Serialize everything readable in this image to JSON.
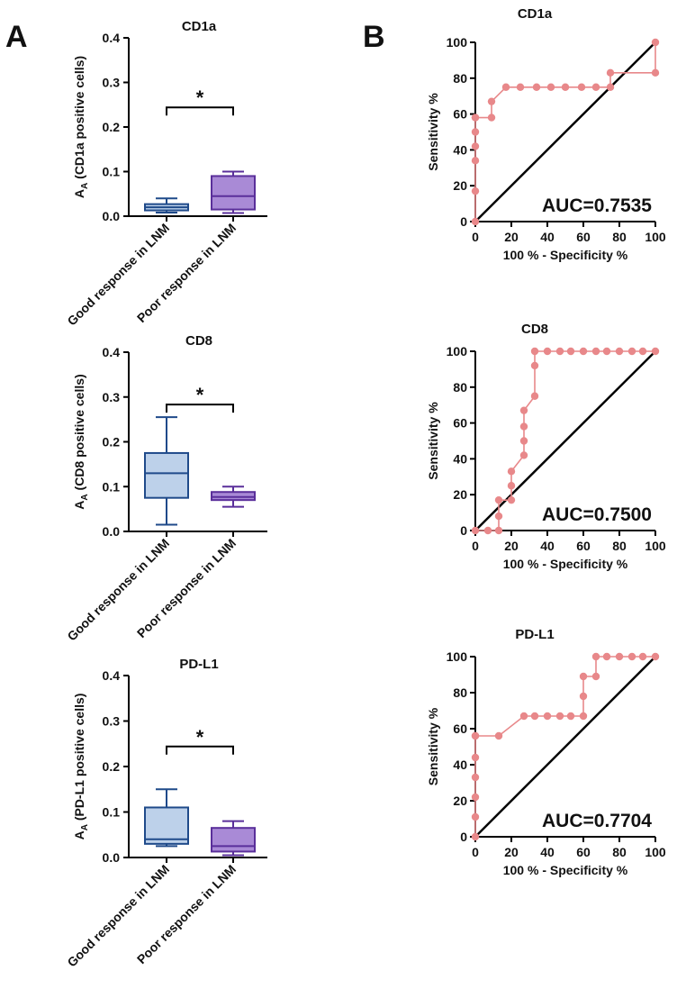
{
  "panels": {
    "a": "A",
    "b": "B"
  },
  "chart_data": [
    {
      "type": "box",
      "title": "CD1a",
      "ylabel": "A",
      "ylabel_sub": "A",
      "ylabel_rest": " (CD1a positive cells)",
      "ylim": [
        0,
        0.4
      ],
      "yticks": [
        "0.0",
        "0.1",
        "0.2",
        "0.3",
        "0.4"
      ],
      "significance": "*",
      "categories": [
        "Good response in LNM",
        "Poor response in LNM"
      ],
      "boxes": [
        {
          "min": 0.008,
          "q1": 0.013,
          "median": 0.02,
          "q3": 0.027,
          "max": 0.04,
          "fill": "#bdd1ea",
          "stroke": "#1f4a8a"
        },
        {
          "min": 0.007,
          "q1": 0.015,
          "median": 0.045,
          "q3": 0.09,
          "max": 0.1,
          "fill": "#a98ad6",
          "stroke": "#5a2f9a"
        }
      ]
    },
    {
      "type": "box",
      "title": "CD8",
      "ylabel": "A",
      "ylabel_sub": "A",
      "ylabel_rest": " (CD8 positive cells)",
      "ylim": [
        0,
        0.4
      ],
      "yticks": [
        "0.0",
        "0.1",
        "0.2",
        "0.3",
        "0.4"
      ],
      "significance": "*",
      "categories": [
        "Good response in LNM",
        "Poor response in LNM"
      ],
      "boxes": [
        {
          "min": 0.015,
          "q1": 0.075,
          "median": 0.13,
          "q3": 0.175,
          "max": 0.255,
          "fill": "#bdd1ea",
          "stroke": "#1f4a8a"
        },
        {
          "min": 0.055,
          "q1": 0.07,
          "median": 0.077,
          "q3": 0.088,
          "max": 0.1,
          "fill": "#a98ad6",
          "stroke": "#5a2f9a"
        }
      ]
    },
    {
      "type": "box",
      "title": "PD-L1",
      "ylabel": "A",
      "ylabel_sub": "A",
      "ylabel_rest": " (PD-L1 positive cells)",
      "ylim": [
        0,
        0.4
      ],
      "yticks": [
        "0.0",
        "0.1",
        "0.2",
        "0.3",
        "0.4"
      ],
      "significance": "*",
      "categories": [
        "Good response in LNM",
        "Poor response in LNM"
      ],
      "boxes": [
        {
          "min": 0.025,
          "q1": 0.03,
          "median": 0.04,
          "q3": 0.11,
          "max": 0.15,
          "fill": "#bdd1ea",
          "stroke": "#1f4a8a"
        },
        {
          "min": 0.005,
          "q1": 0.013,
          "median": 0.025,
          "q3": 0.065,
          "max": 0.08,
          "fill": "#a98ad6",
          "stroke": "#5a2f9a"
        }
      ]
    },
    {
      "type": "line",
      "title": "CD1a",
      "xlabel": "100 % - Specificity %",
      "ylabel": "Sensitivity %",
      "xlim": [
        0,
        100
      ],
      "ylim": [
        0,
        100
      ],
      "xticks": [
        "0",
        "20",
        "40",
        "60",
        "80",
        "100"
      ],
      "yticks": [
        "0",
        "20",
        "40",
        "60",
        "80",
        "100"
      ],
      "auc_label": "AUC=0.7535",
      "line_color": "#e8888a",
      "diagonal_color": "#000000",
      "x": [
        0,
        0,
        0,
        0,
        0,
        0,
        0,
        9,
        9,
        17,
        25,
        34,
        42,
        50,
        59,
        67,
        75,
        75,
        100,
        100
      ],
      "y": [
        0,
        17,
        34,
        42,
        50,
        58,
        58,
        58,
        67,
        75,
        75,
        75,
        75,
        75,
        75,
        75,
        75,
        83,
        83,
        100
      ]
    },
    {
      "type": "line",
      "title": "CD8",
      "xlabel": "100 % - Specificity %",
      "ylabel": "Sensitivity %",
      "xlim": [
        0,
        100
      ],
      "ylim": [
        0,
        100
      ],
      "xticks": [
        "0",
        "20",
        "40",
        "60",
        "80",
        "100"
      ],
      "yticks": [
        "0",
        "20",
        "40",
        "60",
        "80",
        "100"
      ],
      "auc_label": "AUC=0.7500",
      "line_color": "#e8888a",
      "diagonal_color": "#000000",
      "x": [
        0,
        7,
        13,
        13,
        13,
        20,
        20,
        20,
        27,
        27,
        27,
        27,
        33,
        33,
        33,
        40,
        47,
        53,
        60,
        67,
        73,
        80,
        87,
        93,
        100
      ],
      "y": [
        0,
        0,
        0,
        8,
        17,
        17,
        25,
        33,
        42,
        50,
        58,
        67,
        75,
        92,
        100,
        100,
        100,
        100,
        100,
        100,
        100,
        100,
        100,
        100,
        100
      ]
    },
    {
      "type": "line",
      "title": "PD-L1",
      "xlabel": "100 % - Specificity %",
      "ylabel": "Sensitivity %",
      "xlim": [
        0,
        100
      ],
      "ylim": [
        0,
        100
      ],
      "xticks": [
        "0",
        "20",
        "40",
        "60",
        "80",
        "100"
      ],
      "yticks": [
        "0",
        "20",
        "40",
        "60",
        "80",
        "100"
      ],
      "auc_label": "AUC=0.7704",
      "line_color": "#e8888a",
      "diagonal_color": "#000000",
      "x": [
        0,
        0,
        0,
        0,
        0,
        0,
        0,
        13,
        27,
        33,
        40,
        47,
        53,
        60,
        60,
        60,
        67,
        67,
        73,
        80,
        87,
        93,
        100
      ],
      "y": [
        0,
        11,
        22,
        33,
        44,
        56,
        56,
        56,
        67,
        67,
        67,
        67,
        67,
        67,
        78,
        89,
        89,
        100,
        100,
        100,
        100,
        100,
        100
      ]
    }
  ]
}
